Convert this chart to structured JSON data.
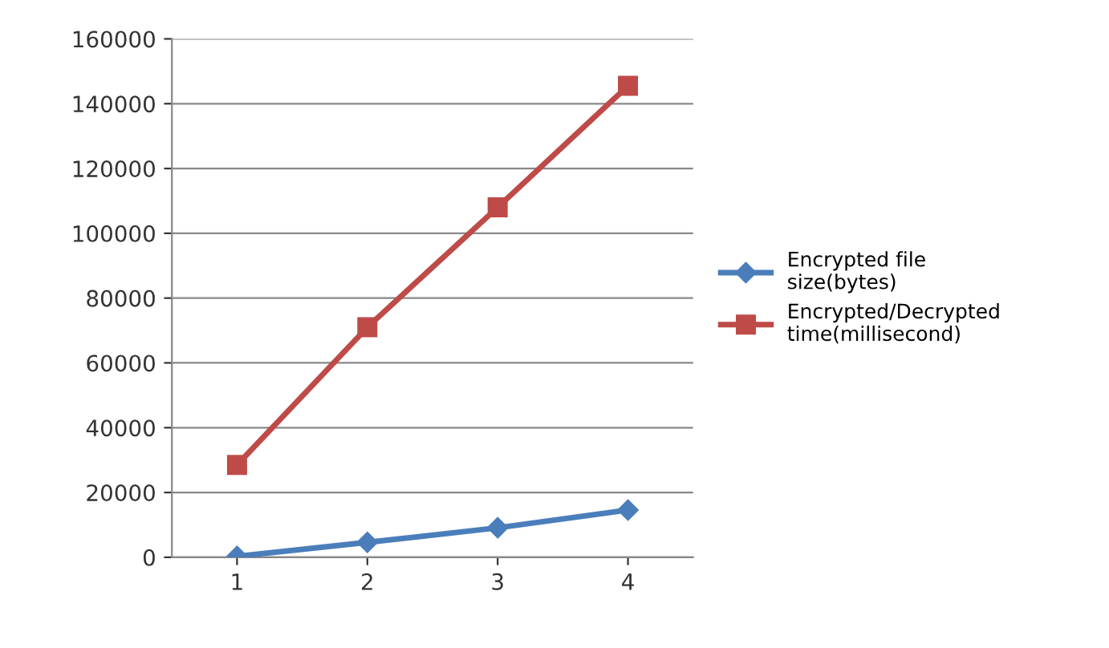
{
  "chart_data": {
    "type": "line",
    "categories": [
      "1",
      "2",
      "3",
      "4"
    ],
    "series": [
      {
        "name": "Encrypted file size(bytes)",
        "color": "#4a7ebb",
        "marker": "diamond",
        "values": [
          300,
          4600,
          9100,
          14600
        ]
      },
      {
        "name": "Encrypted/Decrypted time(millisecond)",
        "color": "#be4b48",
        "marker": "square",
        "values": [
          28500,
          71000,
          108000,
          145500
        ]
      }
    ],
    "ylim": [
      0,
      160000
    ],
    "yticks": [
      0,
      20000,
      40000,
      60000,
      80000,
      100000,
      120000,
      140000,
      160000
    ],
    "grid": "y",
    "legend": "right",
    "line_style": "solid"
  }
}
